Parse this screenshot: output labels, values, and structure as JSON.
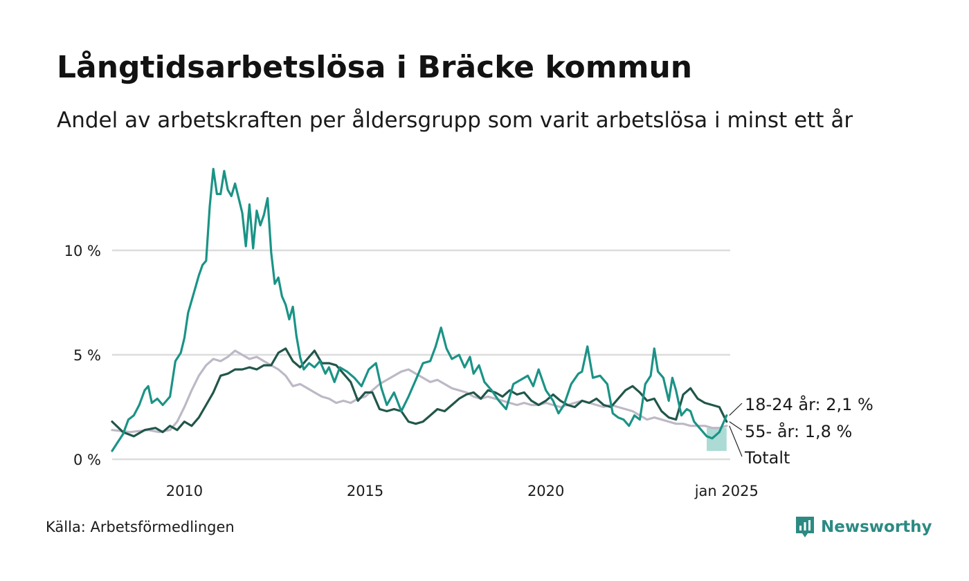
{
  "header": {
    "title": "Långtidsarbetslösa i Bräcke kommun",
    "subtitle": "Andel av arbetskraften per åldersgrupp som varit arbetslösa i minst ett år"
  },
  "footer": {
    "source": "Källa: Arbetsförmedlingen",
    "brand": "Newsworthy"
  },
  "colors": {
    "series_18_24": "#1a9386",
    "series_55": "#215649",
    "series_total": "#bdb8c6",
    "gap_fill": "#8fcfc5",
    "grid": "#dcdcdc",
    "brand": "#2c8a83"
  },
  "chart_data": {
    "type": "line",
    "x_unit": "year (decimal)",
    "xlim": [
      2008,
      2025.1
    ],
    "ylim": [
      0,
      14
    ],
    "y_ticks": [
      {
        "value": 0,
        "label": "0 %"
      },
      {
        "value": 5,
        "label": "5 %"
      },
      {
        "value": 10,
        "label": "10 %"
      }
    ],
    "x_ticks": [
      {
        "value": 2010,
        "label": "2010"
      },
      {
        "value": 2015,
        "label": "2015"
      },
      {
        "value": 2020,
        "label": "2020"
      },
      {
        "value": 2025,
        "label": "jan 2025"
      }
    ],
    "grid": true,
    "series": [
      {
        "name": "Totalt",
        "label": "Totalt",
        "color": "#bdb8c6",
        "points": [
          [
            2008.0,
            1.4
          ],
          [
            2008.5,
            1.3
          ],
          [
            2009.0,
            1.4
          ],
          [
            2009.3,
            1.3
          ],
          [
            2009.6,
            1.4
          ],
          [
            2009.8,
            1.8
          ],
          [
            2010.0,
            2.5
          ],
          [
            2010.2,
            3.3
          ],
          [
            2010.4,
            4.0
          ],
          [
            2010.6,
            4.5
          ],
          [
            2010.8,
            4.8
          ],
          [
            2011.0,
            4.7
          ],
          [
            2011.2,
            4.9
          ],
          [
            2011.4,
            5.2
          ],
          [
            2011.6,
            5.0
          ],
          [
            2011.8,
            4.8
          ],
          [
            2012.0,
            4.9
          ],
          [
            2012.2,
            4.7
          ],
          [
            2012.4,
            4.5
          ],
          [
            2012.6,
            4.3
          ],
          [
            2012.8,
            4.0
          ],
          [
            2013.0,
            3.5
          ],
          [
            2013.2,
            3.6
          ],
          [
            2013.4,
            3.4
          ],
          [
            2013.6,
            3.2
          ],
          [
            2013.8,
            3.0
          ],
          [
            2014.0,
            2.9
          ],
          [
            2014.2,
            2.7
          ],
          [
            2014.4,
            2.8
          ],
          [
            2014.6,
            2.7
          ],
          [
            2014.8,
            2.9
          ],
          [
            2015.0,
            3.0
          ],
          [
            2015.2,
            3.3
          ],
          [
            2015.4,
            3.6
          ],
          [
            2015.6,
            3.8
          ],
          [
            2015.8,
            4.0
          ],
          [
            2016.0,
            4.2
          ],
          [
            2016.2,
            4.3
          ],
          [
            2016.4,
            4.1
          ],
          [
            2016.6,
            3.9
          ],
          [
            2016.8,
            3.7
          ],
          [
            2017.0,
            3.8
          ],
          [
            2017.2,
            3.6
          ],
          [
            2017.4,
            3.4
          ],
          [
            2017.6,
            3.3
          ],
          [
            2017.8,
            3.2
          ],
          [
            2018.0,
            3.0
          ],
          [
            2018.2,
            2.9
          ],
          [
            2018.4,
            3.0
          ],
          [
            2018.6,
            2.9
          ],
          [
            2018.8,
            2.8
          ],
          [
            2019.0,
            2.7
          ],
          [
            2019.2,
            2.6
          ],
          [
            2019.4,
            2.7
          ],
          [
            2019.6,
            2.6
          ],
          [
            2019.8,
            2.6
          ],
          [
            2020.0,
            2.7
          ],
          [
            2020.2,
            2.6
          ],
          [
            2020.4,
            2.5
          ],
          [
            2020.6,
            2.6
          ],
          [
            2020.8,
            2.7
          ],
          [
            2021.0,
            2.8
          ],
          [
            2021.2,
            2.7
          ],
          [
            2021.4,
            2.6
          ],
          [
            2021.6,
            2.5
          ],
          [
            2021.8,
            2.6
          ],
          [
            2022.0,
            2.5
          ],
          [
            2022.2,
            2.4
          ],
          [
            2022.4,
            2.3
          ],
          [
            2022.6,
            2.1
          ],
          [
            2022.8,
            1.9
          ],
          [
            2023.0,
            2.0
          ],
          [
            2023.2,
            1.9
          ],
          [
            2023.4,
            1.8
          ],
          [
            2023.6,
            1.7
          ],
          [
            2023.8,
            1.7
          ],
          [
            2024.0,
            1.6
          ],
          [
            2024.2,
            1.6
          ],
          [
            2024.4,
            1.6
          ],
          [
            2024.6,
            1.5
          ],
          [
            2024.8,
            1.5
          ],
          [
            2025.0,
            1.6
          ]
        ]
      },
      {
        "name": "55- år",
        "label": "55- år: 1,8 %",
        "color": "#215649",
        "points": [
          [
            2008.0,
            1.8
          ],
          [
            2008.3,
            1.3
          ],
          [
            2008.6,
            1.1
          ],
          [
            2008.9,
            1.4
          ],
          [
            2009.2,
            1.5
          ],
          [
            2009.4,
            1.3
          ],
          [
            2009.6,
            1.6
          ],
          [
            2009.8,
            1.4
          ],
          [
            2010.0,
            1.8
          ],
          [
            2010.2,
            1.6
          ],
          [
            2010.4,
            2.0
          ],
          [
            2010.6,
            2.6
          ],
          [
            2010.8,
            3.2
          ],
          [
            2011.0,
            4.0
          ],
          [
            2011.2,
            4.1
          ],
          [
            2011.4,
            4.3
          ],
          [
            2011.6,
            4.3
          ],
          [
            2011.8,
            4.4
          ],
          [
            2012.0,
            4.3
          ],
          [
            2012.2,
            4.5
          ],
          [
            2012.4,
            4.5
          ],
          [
            2012.6,
            5.1
          ],
          [
            2012.8,
            5.3
          ],
          [
            2013.0,
            4.7
          ],
          [
            2013.2,
            4.4
          ],
          [
            2013.4,
            4.8
          ],
          [
            2013.6,
            5.2
          ],
          [
            2013.8,
            4.6
          ],
          [
            2014.0,
            4.6
          ],
          [
            2014.2,
            4.5
          ],
          [
            2014.4,
            4.1
          ],
          [
            2014.6,
            3.7
          ],
          [
            2014.8,
            2.8
          ],
          [
            2015.0,
            3.2
          ],
          [
            2015.2,
            3.2
          ],
          [
            2015.4,
            2.4
          ],
          [
            2015.6,
            2.3
          ],
          [
            2015.8,
            2.4
          ],
          [
            2016.0,
            2.3
          ],
          [
            2016.2,
            1.8
          ],
          [
            2016.4,
            1.7
          ],
          [
            2016.6,
            1.8
          ],
          [
            2016.8,
            2.1
          ],
          [
            2017.0,
            2.4
          ],
          [
            2017.2,
            2.3
          ],
          [
            2017.4,
            2.6
          ],
          [
            2017.6,
            2.9
          ],
          [
            2017.8,
            3.1
          ],
          [
            2018.0,
            3.2
          ],
          [
            2018.2,
            2.9
          ],
          [
            2018.4,
            3.3
          ],
          [
            2018.6,
            3.2
          ],
          [
            2018.8,
            3.0
          ],
          [
            2019.0,
            3.3
          ],
          [
            2019.2,
            3.1
          ],
          [
            2019.4,
            3.2
          ],
          [
            2019.6,
            2.8
          ],
          [
            2019.8,
            2.6
          ],
          [
            2020.0,
            2.8
          ],
          [
            2020.2,
            3.1
          ],
          [
            2020.4,
            2.8
          ],
          [
            2020.6,
            2.6
          ],
          [
            2020.8,
            2.5
          ],
          [
            2021.0,
            2.8
          ],
          [
            2021.2,
            2.7
          ],
          [
            2021.4,
            2.9
          ],
          [
            2021.6,
            2.6
          ],
          [
            2021.8,
            2.5
          ],
          [
            2022.0,
            2.9
          ],
          [
            2022.2,
            3.3
          ],
          [
            2022.4,
            3.5
          ],
          [
            2022.6,
            3.2
          ],
          [
            2022.8,
            2.8
          ],
          [
            2023.0,
            2.9
          ],
          [
            2023.2,
            2.3
          ],
          [
            2023.4,
            2.0
          ],
          [
            2023.6,
            1.9
          ],
          [
            2023.8,
            3.1
          ],
          [
            2024.0,
            3.4
          ],
          [
            2024.2,
            2.9
          ],
          [
            2024.4,
            2.7
          ],
          [
            2024.6,
            2.6
          ],
          [
            2024.8,
            2.5
          ],
          [
            2025.0,
            1.8
          ]
        ]
      },
      {
        "name": "18-24 år",
        "label": "18-24 år: 2,1 %",
        "color": "#1a9386",
        "points": [
          [
            2008.0,
            0.4
          ],
          [
            2008.15,
            0.8
          ],
          [
            2008.3,
            1.2
          ],
          [
            2008.45,
            1.9
          ],
          [
            2008.6,
            2.1
          ],
          [
            2008.75,
            2.6
          ],
          [
            2008.9,
            3.3
          ],
          [
            2009.0,
            3.5
          ],
          [
            2009.1,
            2.7
          ],
          [
            2009.25,
            2.9
          ],
          [
            2009.4,
            2.6
          ],
          [
            2009.6,
            3.0
          ],
          [
            2009.75,
            4.7
          ],
          [
            2009.9,
            5.1
          ],
          [
            2010.0,
            5.8
          ],
          [
            2010.1,
            7.0
          ],
          [
            2010.2,
            7.6
          ],
          [
            2010.3,
            8.2
          ],
          [
            2010.4,
            8.8
          ],
          [
            2010.5,
            9.3
          ],
          [
            2010.6,
            9.5
          ],
          [
            2010.7,
            12.1
          ],
          [
            2010.8,
            13.9
          ],
          [
            2010.9,
            12.7
          ],
          [
            2011.0,
            12.7
          ],
          [
            2011.1,
            13.8
          ],
          [
            2011.2,
            12.9
          ],
          [
            2011.3,
            12.6
          ],
          [
            2011.4,
            13.2
          ],
          [
            2011.5,
            12.5
          ],
          [
            2011.6,
            11.8
          ],
          [
            2011.7,
            10.2
          ],
          [
            2011.8,
            12.2
          ],
          [
            2011.9,
            10.1
          ],
          [
            2012.0,
            11.9
          ],
          [
            2012.1,
            11.2
          ],
          [
            2012.2,
            11.7
          ],
          [
            2012.3,
            12.5
          ],
          [
            2012.4,
            9.9
          ],
          [
            2012.5,
            8.4
          ],
          [
            2012.6,
            8.7
          ],
          [
            2012.7,
            7.8
          ],
          [
            2012.8,
            7.4
          ],
          [
            2012.9,
            6.7
          ],
          [
            2013.0,
            7.3
          ],
          [
            2013.1,
            5.9
          ],
          [
            2013.2,
            4.9
          ],
          [
            2013.3,
            4.3
          ],
          [
            2013.45,
            4.6
          ],
          [
            2013.6,
            4.4
          ],
          [
            2013.75,
            4.7
          ],
          [
            2013.9,
            4.1
          ],
          [
            2014.0,
            4.4
          ],
          [
            2014.15,
            3.7
          ],
          [
            2014.3,
            4.4
          ],
          [
            2014.5,
            4.2
          ],
          [
            2014.7,
            3.9
          ],
          [
            2014.9,
            3.5
          ],
          [
            2015.1,
            4.3
          ],
          [
            2015.3,
            4.6
          ],
          [
            2015.45,
            3.4
          ],
          [
            2015.6,
            2.6
          ],
          [
            2015.8,
            3.2
          ],
          [
            2016.0,
            2.3
          ],
          [
            2016.2,
            3.0
          ],
          [
            2016.4,
            3.8
          ],
          [
            2016.6,
            4.6
          ],
          [
            2016.8,
            4.7
          ],
          [
            2016.95,
            5.4
          ],
          [
            2017.1,
            6.3
          ],
          [
            2017.25,
            5.3
          ],
          [
            2017.4,
            4.8
          ],
          [
            2017.6,
            5.0
          ],
          [
            2017.75,
            4.4
          ],
          [
            2017.9,
            4.9
          ],
          [
            2018.0,
            4.1
          ],
          [
            2018.15,
            4.5
          ],
          [
            2018.3,
            3.7
          ],
          [
            2018.5,
            3.3
          ],
          [
            2018.7,
            2.8
          ],
          [
            2018.9,
            2.4
          ],
          [
            2019.1,
            3.6
          ],
          [
            2019.3,
            3.8
          ],
          [
            2019.5,
            4.0
          ],
          [
            2019.65,
            3.5
          ],
          [
            2019.8,
            4.3
          ],
          [
            2020.0,
            3.3
          ],
          [
            2020.2,
            2.8
          ],
          [
            2020.35,
            2.2
          ],
          [
            2020.5,
            2.6
          ],
          [
            2020.7,
            3.6
          ],
          [
            2020.9,
            4.1
          ],
          [
            2021.0,
            4.2
          ],
          [
            2021.15,
            5.4
          ],
          [
            2021.3,
            3.9
          ],
          [
            2021.5,
            4.0
          ],
          [
            2021.7,
            3.6
          ],
          [
            2021.85,
            2.2
          ],
          [
            2022.0,
            2.0
          ],
          [
            2022.15,
            1.9
          ],
          [
            2022.3,
            1.6
          ],
          [
            2022.45,
            2.1
          ],
          [
            2022.6,
            1.9
          ],
          [
            2022.75,
            3.6
          ],
          [
            2022.9,
            4.0
          ],
          [
            2023.0,
            5.3
          ],
          [
            2023.1,
            4.2
          ],
          [
            2023.25,
            3.9
          ],
          [
            2023.4,
            2.8
          ],
          [
            2023.5,
            3.9
          ],
          [
            2023.6,
            3.3
          ],
          [
            2023.75,
            2.1
          ],
          [
            2023.9,
            2.4
          ],
          [
            2024.0,
            2.3
          ],
          [
            2024.1,
            1.8
          ],
          [
            2024.3,
            1.4
          ],
          [
            2024.45,
            1.1
          ],
          [
            2024.6,
            1.0
          ],
          [
            2024.8,
            1.3
          ],
          [
            2025.0,
            2.1
          ]
        ]
      }
    ],
    "labels": [
      {
        "series": "18-24 år",
        "text": "18-24 år: 2,1 %"
      },
      {
        "series": "55- år",
        "text": "55- år: 1,8 %"
      },
      {
        "series": "Totalt",
        "text": "Totalt"
      }
    ]
  }
}
